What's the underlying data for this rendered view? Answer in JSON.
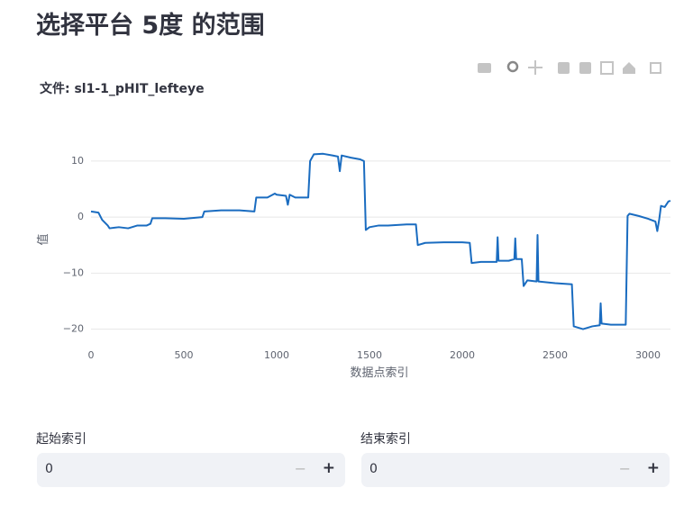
{
  "header": {
    "title": "选择平台 5度 的范围"
  },
  "chart_data": {
    "type": "line",
    "title": "文件: sl1-1_pHIT_lefteye",
    "x_label": "数据点索引",
    "y_label": "值",
    "series": [
      {
        "color": "#1a6cc0",
        "x": [
          0,
          40,
          60,
          90,
          100,
          150,
          200,
          250,
          300,
          320,
          330,
          400,
          500,
          600,
          610,
          700,
          800,
          880,
          890,
          950,
          990,
          1000,
          1050,
          1060,
          1070,
          1100,
          1170,
          1180,
          1200,
          1250,
          1300,
          1330,
          1340,
          1350,
          1400,
          1450,
          1470,
          1480,
          1500,
          1550,
          1600,
          1700,
          1750,
          1760,
          1800,
          1900,
          2000,
          2040,
          2050,
          2100,
          2130,
          2185,
          2190,
          2195,
          2250,
          2280,
          2285,
          2290,
          2320,
          2330,
          2350,
          2400,
          2405,
          2410,
          2500,
          2590,
          2600,
          2650,
          2700,
          2740,
          2745,
          2750,
          2800,
          2880,
          2890,
          2900,
          2950,
          3000,
          3040,
          3050,
          3060,
          3070,
          3090,
          3110,
          3121
        ],
        "values": [
          1,
          0.8,
          -0.5,
          -1.5,
          -2,
          -1.8,
          -2,
          -1.5,
          -1.5,
          -1.2,
          -0.2,
          -0.2,
          -0.3,
          0,
          1,
          1.2,
          1.2,
          1,
          3.5,
          3.5,
          4.2,
          4,
          3.8,
          2.2,
          4,
          3.5,
          3.5,
          10,
          11.2,
          11.3,
          11,
          10.8,
          8.2,
          11,
          10.6,
          10.3,
          10,
          -2.3,
          -1.8,
          -1.5,
          -1.5,
          -1.3,
          -1.3,
          -5,
          -4.6,
          -4.5,
          -4.5,
          -4.6,
          -8.2,
          -8,
          -8,
          -8,
          -3.6,
          -7.8,
          -7.8,
          -7.5,
          -3.8,
          -7.5,
          -7.5,
          -12.3,
          -11.3,
          -11.5,
          -3.2,
          -11.5,
          -11.8,
          -12,
          -19.5,
          -20,
          -19.5,
          -19.3,
          -15.4,
          -19,
          -19.2,
          -19.2,
          0.2,
          0.6,
          0.2,
          -0.3,
          -0.8,
          -2.5,
          -0.5,
          2,
          1.8,
          2.8,
          2.9
        ]
      }
    ],
    "xlim": [
      0,
      3121
    ],
    "ylim": [
      -22,
      14
    ],
    "xticks": [
      0,
      500,
      1000,
      1500,
      2000,
      2500,
      3000
    ],
    "yticks": [
      {
        "value": -20,
        "label": "−20"
      },
      {
        "value": -10,
        "label": "−10"
      },
      0,
      10
    ],
    "grid": "y"
  },
  "inputs": [
    {
      "label": "起始索引",
      "value": 0,
      "minus": "−",
      "plus": "+"
    },
    {
      "label": "结束索引",
      "value": 0,
      "minus": "−",
      "plus": "+"
    }
  ]
}
